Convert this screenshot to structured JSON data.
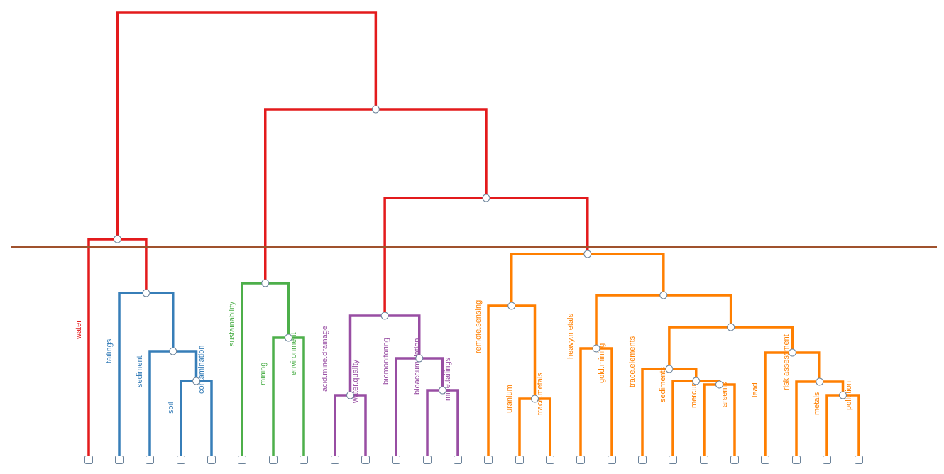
{
  "colors": {
    "root": "#e31a1c",
    "cluster1": "#377eb8",
    "cluster2": "#4daf4a",
    "cluster3": "#984ea3",
    "cluster4": "#ff7f00",
    "cut_line": "#a0522d",
    "node_stroke": "#6b8299",
    "node_fill": "#ffffff"
  },
  "leaves": [
    {
      "id": "L1",
      "label": "water",
      "group": "root"
    },
    {
      "id": "L2",
      "label": "tailings",
      "group": "cluster1"
    },
    {
      "id": "L3",
      "label": "sediment",
      "group": "cluster1"
    },
    {
      "id": "L4",
      "label": "soil",
      "group": "cluster1"
    },
    {
      "id": "L5",
      "label": "contamination",
      "group": "cluster1"
    },
    {
      "id": "L6",
      "label": "sustainability",
      "group": "cluster2"
    },
    {
      "id": "L7",
      "label": "mining",
      "group": "cluster2"
    },
    {
      "id": "L8",
      "label": "environment",
      "group": "cluster2"
    },
    {
      "id": "L9",
      "label": "acid.mine.drainage",
      "group": "cluster3"
    },
    {
      "id": "L10",
      "label": "water.quality",
      "group": "cluster3"
    },
    {
      "id": "L11",
      "label": "biomonitoring",
      "group": "cluster3"
    },
    {
      "id": "L12",
      "label": "bioaccumulation",
      "group": "cluster3"
    },
    {
      "id": "L13",
      "label": "mine.tailings",
      "group": "cluster3"
    },
    {
      "id": "L14",
      "label": "remote.sensing",
      "group": "cluster4"
    },
    {
      "id": "L15",
      "label": "uranium",
      "group": "cluster4"
    },
    {
      "id": "L16",
      "label": "trace.metals",
      "group": "cluster4"
    },
    {
      "id": "L17",
      "label": "heavy.metals",
      "group": "cluster4"
    },
    {
      "id": "L18",
      "label": "gold.mining",
      "group": "cluster4"
    },
    {
      "id": "L19",
      "label": "trace.elements",
      "group": "cluster4"
    },
    {
      "id": "L20",
      "label": "sediments",
      "group": "cluster4"
    },
    {
      "id": "L21",
      "label": "mercury",
      "group": "cluster4"
    },
    {
      "id": "L22",
      "label": "arsenic",
      "group": "cluster4"
    },
    {
      "id": "L23",
      "label": "lead",
      "group": "cluster4"
    },
    {
      "id": "L24",
      "label": "risk assessment",
      "group": "cluster4"
    },
    {
      "id": "L25",
      "label": "metals",
      "group": "cluster4"
    },
    {
      "id": "L26",
      "label": "pollution",
      "group": "cluster4"
    }
  ]
}
